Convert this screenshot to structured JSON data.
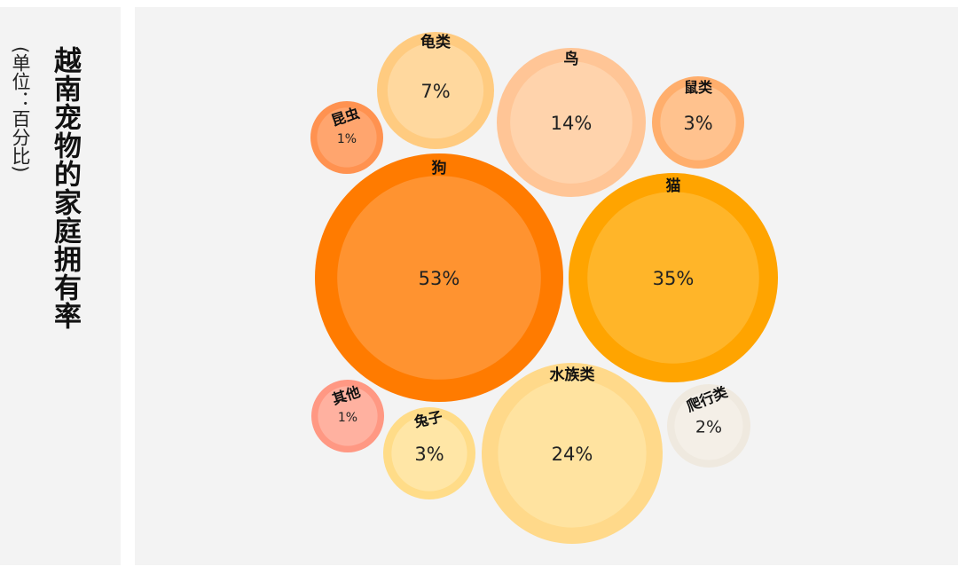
{
  "chart_data": {
    "type": "bubble",
    "title": "越南宠物的家庭拥有率",
    "unit": "(单位：百分比)",
    "series": [
      {
        "name": "狗",
        "value": 53,
        "label": "53%",
        "outer": "#ff7b00",
        "inner": "#ff9330"
      },
      {
        "name": "猫",
        "value": 35,
        "label": "35%",
        "outer": "#ffa400",
        "inner": "#ffb529"
      },
      {
        "name": "水族类",
        "value": 24,
        "label": "24%",
        "outer": "#ffd98a",
        "inner": "#ffe3a0"
      },
      {
        "name": "鸟",
        "value": 14,
        "label": "14%",
        "outer": "#ffc596",
        "inner": "#ffd3ac"
      },
      {
        "name": "龟类",
        "value": 7,
        "label": "7%",
        "outer": "#ffcb80",
        "inner": "#ffd89e"
      },
      {
        "name": "鼠类",
        "value": 3,
        "label": "3%",
        "outer": "#ffae6c",
        "inner": "#ffc28e"
      },
      {
        "name": "兔子",
        "value": 3,
        "label": "3%",
        "outer": "#ffdc88",
        "inner": "#ffe6a6"
      },
      {
        "name": "爬行类",
        "value": 2,
        "label": "2%",
        "outer": "#efe9df",
        "inner": "#f4efe7"
      },
      {
        "name": "昆虫",
        "value": 1,
        "label": "1%",
        "outer": "#ff9250",
        "inner": "#ffa56e"
      },
      {
        "name": "其他",
        "value": 1,
        "label": "1%",
        "outer": "#ff9883",
        "inner": "#ffb1a0"
      }
    ]
  }
}
